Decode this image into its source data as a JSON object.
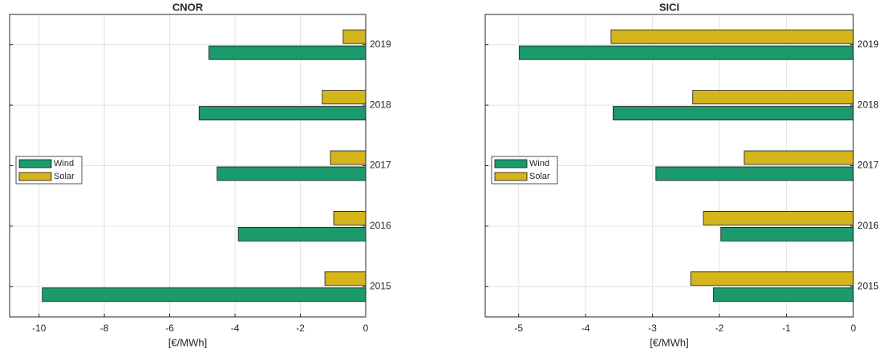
{
  "chart_data": [
    {
      "type": "barh",
      "title": "CNOR",
      "xlabel": "[€/MWh]",
      "categories": [
        "2015",
        "2016",
        "2017",
        "2018",
        "2019"
      ],
      "series": [
        {
          "name": "Wind",
          "color": "#1b9a6c",
          "values": [
            -9.9,
            -3.9,
            -4.55,
            -5.1,
            -4.8
          ]
        },
        {
          "name": "Solar",
          "color": "#d4b51c",
          "values": [
            -1.25,
            -0.98,
            -1.08,
            -1.33,
            -0.69
          ]
        }
      ],
      "xlim": [
        -10.9,
        0
      ],
      "xticks": [
        -10,
        -8,
        -6,
        -4,
        -2,
        0
      ],
      "grid": true,
      "legend": "left"
    },
    {
      "type": "barh",
      "title": "SICI",
      "xlabel": "[€/MWh]",
      "categories": [
        "2015",
        "2016",
        "2017",
        "2018",
        "2019"
      ],
      "series": [
        {
          "name": "Wind",
          "color": "#1b9a6c",
          "values": [
            -2.09,
            -1.98,
            -2.95,
            -3.59,
            -4.99
          ]
        },
        {
          "name": "Solar",
          "color": "#d4b51c",
          "values": [
            -2.43,
            -2.24,
            -1.63,
            -2.4,
            -3.62
          ]
        }
      ],
      "xlim": [
        -5.5,
        0
      ],
      "xticks": [
        -5,
        -4,
        -3,
        -2,
        -1,
        0
      ],
      "grid": true,
      "legend": "left"
    }
  ]
}
